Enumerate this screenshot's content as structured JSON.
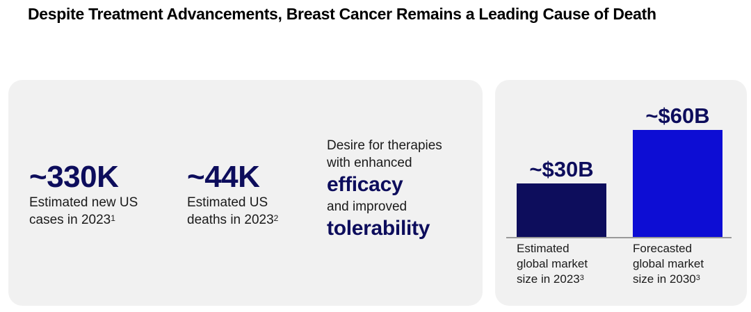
{
  "title": "Despite Treatment Advancements, Breast Cancer Remains a Leading Cause of Death",
  "stats": [
    {
      "value": "~330K",
      "line1": "Estimated new US",
      "line2": "cases in 2023",
      "footnote": "1"
    },
    {
      "value": "~44K",
      "line1": "Estimated US",
      "line2": "deaths in 2023",
      "footnote": "2"
    }
  ],
  "desire": {
    "line1": "Desire for therapies",
    "line2": "with enhanced",
    "emphasis1": "efficacy",
    "line3": "and improved",
    "emphasis2": "tolerability"
  },
  "colors": {
    "navy": "#0d0d5c",
    "blue": "#0d0dd4",
    "panel": "#f1f1f1",
    "baseline": "#9a9a9a"
  },
  "chart_data": {
    "type": "bar",
    "categories": [
      "Estimated global market size in 2023",
      "Forecasted global market size in 2030"
    ],
    "category_lines": [
      [
        "Estimated",
        "global market",
        "size in 2023"
      ],
      [
        "Forecasted",
        "global market",
        "size in 2030"
      ]
    ],
    "category_footnotes": [
      "3",
      "3"
    ],
    "values": [
      30,
      60
    ],
    "data_labels": [
      "~$30B",
      "~$60B"
    ],
    "unit": "$B",
    "bar_colors": [
      "#0d0d5c",
      "#0d0dd4"
    ],
    "ylim": [
      0,
      60
    ],
    "xlabel": "",
    "ylabel": "",
    "grid": false
  }
}
